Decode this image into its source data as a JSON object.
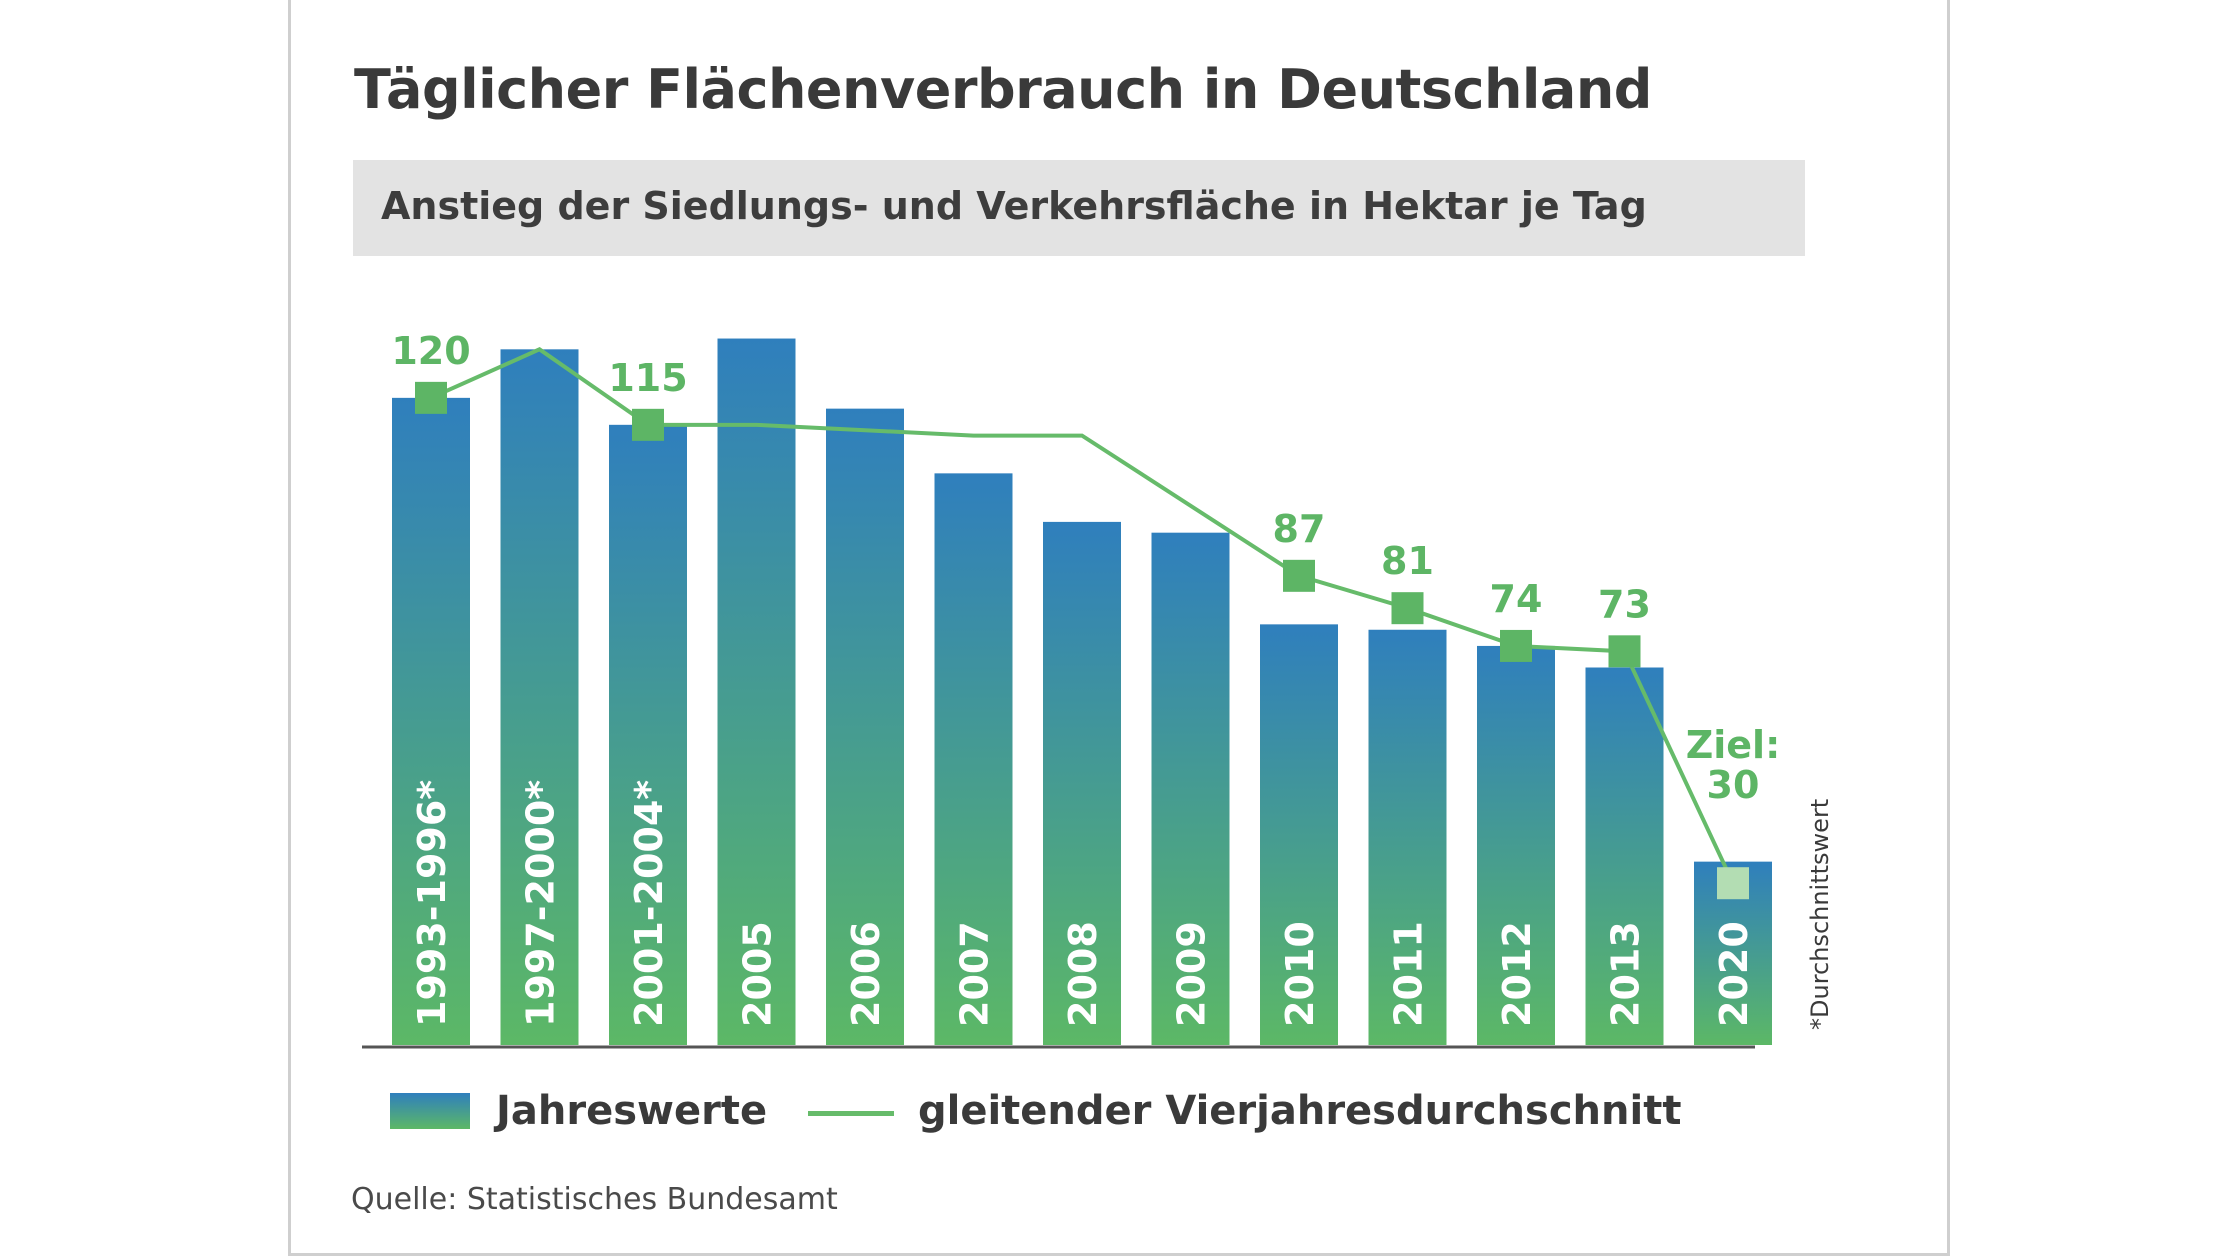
{
  "title": "Täglicher Flächenverbrauch in Deutschland",
  "subtitle": "Anstieg der Siedlungs- und Verkehrsfläche in Hektar je Tag",
  "legend": {
    "bars": "Jahreswerte",
    "line": "gleitender Vierjahresdurchschnitt"
  },
  "source": "Quelle: Statistisches Bundesamt",
  "footnote": "*Durchschnittswert",
  "colors": {
    "bar_top": "#2f7fbd",
    "bar_bottom": "#5cb866",
    "line": "#66bb6a",
    "marker": "#5db565",
    "target_marker": "#b3ddb3",
    "label_green": "#5db565"
  },
  "chart_data": {
    "type": "bar",
    "categories": [
      "1993-1996*",
      "1997-2000*",
      "2001-2004*",
      "2005",
      "2006",
      "2007",
      "2008",
      "2009",
      "2010",
      "2011",
      "2012",
      "2013",
      "2020"
    ],
    "series": [
      {
        "name": "Jahreswerte",
        "type": "bar",
        "values": [
          120,
          129,
          115,
          131,
          118,
          106,
          97,
          95,
          78,
          77,
          74,
          70,
          34
        ]
      },
      {
        "name": "gleitender Vierjahresdurchschnitt",
        "type": "line",
        "values": [
          120,
          129,
          115,
          115,
          114,
          113,
          113,
          null,
          87,
          81,
          74,
          73,
          30
        ],
        "marked_labels": [
          {
            "category": "1993-1996*",
            "label": "120"
          },
          {
            "category": "2001-2004*",
            "label": "115"
          },
          {
            "category": "2010",
            "label": "87"
          },
          {
            "category": "2011",
            "label": "81"
          },
          {
            "category": "2012",
            "label": "74"
          },
          {
            "category": "2013",
            "label": "73"
          },
          {
            "category": "2020",
            "label": "Ziel:\n30",
            "target": true
          }
        ]
      }
    ],
    "ylim": [
      0,
      140
    ]
  }
}
